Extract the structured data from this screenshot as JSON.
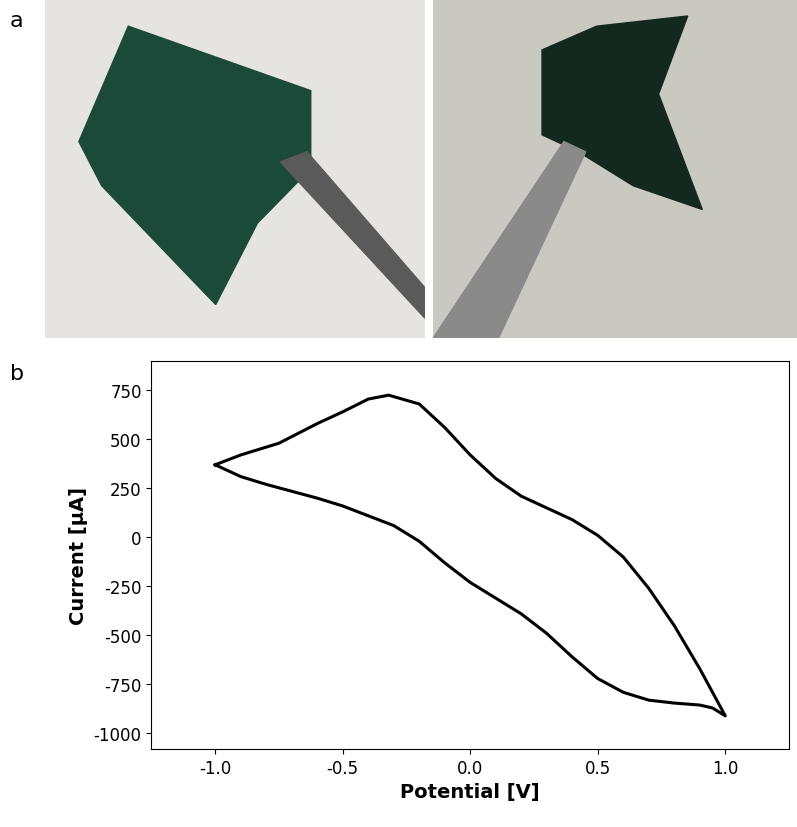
{
  "photos": {
    "panel_label": "a"
  },
  "chart_data": {
    "type": "line",
    "panel_label": "b",
    "x_label": "Potential [V]",
    "y_label": "Current [μA]",
    "x": [
      -1.0,
      -0.9,
      -0.75,
      -0.6,
      -0.5,
      -0.4,
      -0.32,
      -0.2,
      -0.1,
      0.0,
      0.1,
      0.2,
      0.3,
      0.4,
      0.5,
      0.6,
      0.7,
      0.8,
      0.9,
      1.0,
      0.95,
      0.9,
      0.8,
      0.7,
      0.6,
      0.5,
      0.4,
      0.3,
      0.2,
      0.1,
      0.0,
      -0.1,
      -0.2,
      -0.3,
      -0.4,
      -0.5,
      -0.6,
      -0.7,
      -0.8,
      -0.9,
      -1.0
    ],
    "values": [
      370,
      420,
      480,
      580,
      640,
      705,
      725,
      680,
      560,
      420,
      300,
      210,
      150,
      90,
      10,
      -100,
      -260,
      -450,
      -670,
      -910,
      -870,
      -855,
      -845,
      -830,
      -790,
      -720,
      -610,
      -490,
      -390,
      -310,
      -230,
      -130,
      -20,
      60,
      110,
      160,
      200,
      235,
      270,
      310,
      370
    ],
    "color": "#000000",
    "xlim": [
      -1.25,
      1.25
    ],
    "xticks": [
      -1.0,
      -0.5,
      0.0,
      0.5,
      1.0
    ],
    "ylim": [
      -1080,
      900
    ],
    "yticks": [
      -1000,
      -750,
      -500,
      -250,
      0,
      250,
      500,
      750
    ],
    "grid": false
  }
}
